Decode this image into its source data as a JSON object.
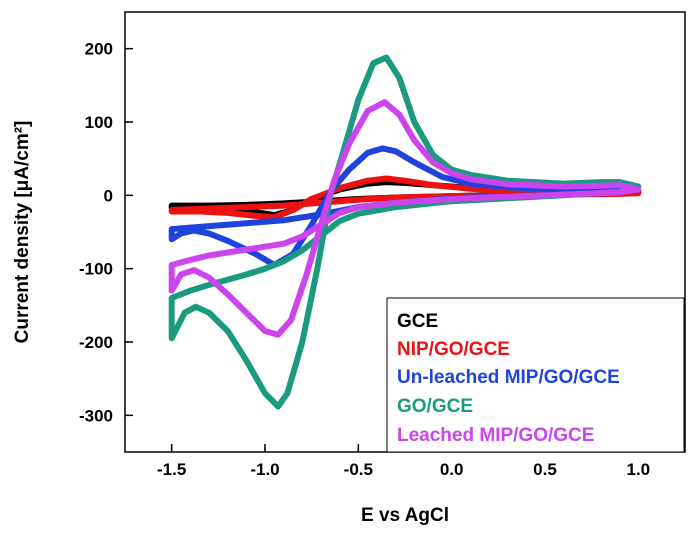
{
  "chart_data": {
    "type": "line",
    "title": "",
    "xlabel": "E vs AgCl",
    "ylabel": "Current density [μA/cm²]",
    "xlim": [
      -1.75,
      1.25
    ],
    "ylim": [
      -350,
      250
    ],
    "xticks": [
      -1.5,
      -1.0,
      -0.5,
      0.0,
      0.5,
      1.0
    ],
    "xtick_labels": [
      "-1.5",
      "-1.0",
      "-0.5",
      "0.0",
      "0.5",
      "1.0"
    ],
    "yticks": [
      -300,
      -200,
      -100,
      0,
      100,
      200
    ],
    "ytick_labels": [
      "-300",
      "-200",
      "-100",
      "0",
      "100",
      "200"
    ],
    "legend_position": "bottom-right",
    "series": [
      {
        "name": "GCE",
        "color": "#000000",
        "points": [
          [
            -1.5,
            -14
          ],
          [
            -1.3,
            -14
          ],
          [
            -1.1,
            -13
          ],
          [
            -0.9,
            -11
          ],
          [
            -0.7,
            -8
          ],
          [
            -0.5,
            -5
          ],
          [
            -0.3,
            -3
          ],
          [
            0.0,
            -1
          ],
          [
            0.3,
            1
          ],
          [
            0.6,
            2
          ],
          [
            0.9,
            4
          ],
          [
            1.0,
            5
          ],
          [
            0.9,
            8
          ],
          [
            0.7,
            8
          ],
          [
            0.5,
            7
          ],
          [
            0.3,
            8
          ],
          [
            0.1,
            10
          ],
          [
            -0.1,
            14
          ],
          [
            -0.25,
            17
          ],
          [
            -0.35,
            18
          ],
          [
            -0.45,
            16
          ],
          [
            -0.6,
            8
          ],
          [
            -0.75,
            -5
          ],
          [
            -0.85,
            -20
          ],
          [
            -0.95,
            -27
          ],
          [
            -1.05,
            -23
          ],
          [
            -1.2,
            -19
          ],
          [
            -1.35,
            -17
          ],
          [
            -1.5,
            -17
          ]
        ]
      },
      {
        "name": "NIP/GO/GCE",
        "color": "#ee1111",
        "points": [
          [
            -1.5,
            -20
          ],
          [
            -1.3,
            -18
          ],
          [
            -1.1,
            -16
          ],
          [
            -0.9,
            -14
          ],
          [
            -0.7,
            -10
          ],
          [
            -0.5,
            -6
          ],
          [
            -0.3,
            -3
          ],
          [
            0.0,
            -1
          ],
          [
            0.3,
            0
          ],
          [
            0.6,
            1
          ],
          [
            0.9,
            2
          ],
          [
            1.0,
            3
          ],
          [
            0.9,
            5
          ],
          [
            0.7,
            5
          ],
          [
            0.5,
            5
          ],
          [
            0.3,
            6
          ],
          [
            0.1,
            9
          ],
          [
            -0.1,
            14
          ],
          [
            -0.25,
            20
          ],
          [
            -0.35,
            23
          ],
          [
            -0.45,
            20
          ],
          [
            -0.6,
            10
          ],
          [
            -0.75,
            -5
          ],
          [
            -0.85,
            -20
          ],
          [
            -0.95,
            -30
          ],
          [
            -1.05,
            -28
          ],
          [
            -1.2,
            -24
          ],
          [
            -1.35,
            -22
          ],
          [
            -1.5,
            -22
          ]
        ]
      },
      {
        "name": "Un-leached MIP/GO/GCE",
        "color": "#1e44dd",
        "points": [
          [
            -1.5,
            -46
          ],
          [
            -1.3,
            -42
          ],
          [
            -1.1,
            -38
          ],
          [
            -0.9,
            -34
          ],
          [
            -0.7,
            -26
          ],
          [
            -0.5,
            -16
          ],
          [
            -0.3,
            -10
          ],
          [
            0.0,
            -4
          ],
          [
            0.3,
            -1
          ],
          [
            0.6,
            1
          ],
          [
            0.9,
            4
          ],
          [
            1.0,
            8
          ],
          [
            0.9,
            12
          ],
          [
            0.7,
            10
          ],
          [
            0.5,
            9
          ],
          [
            0.3,
            11
          ],
          [
            0.1,
            16
          ],
          [
            -0.05,
            25
          ],
          [
            -0.2,
            45
          ],
          [
            -0.3,
            60
          ],
          [
            -0.37,
            64
          ],
          [
            -0.45,
            58
          ],
          [
            -0.55,
            35
          ],
          [
            -0.65,
            5
          ],
          [
            -0.75,
            -40
          ],
          [
            -0.85,
            -80
          ],
          [
            -0.95,
            -95
          ],
          [
            -1.05,
            -80
          ],
          [
            -1.2,
            -62
          ],
          [
            -1.3,
            -52
          ],
          [
            -1.38,
            -48
          ],
          [
            -1.45,
            -52
          ],
          [
            -1.5,
            -60
          ]
        ]
      },
      {
        "name": "GO/GCE",
        "color": "#1a9a7e",
        "points": [
          [
            -1.5,
            -140
          ],
          [
            -1.4,
            -130
          ],
          [
            -1.3,
            -122
          ],
          [
            -1.2,
            -115
          ],
          [
            -1.1,
            -108
          ],
          [
            -1.0,
            -100
          ],
          [
            -0.9,
            -90
          ],
          [
            -0.8,
            -75
          ],
          [
            -0.7,
            -55
          ],
          [
            -0.6,
            -35
          ],
          [
            -0.5,
            -25
          ],
          [
            -0.3,
            -16
          ],
          [
            0.0,
            -8
          ],
          [
            0.3,
            -4
          ],
          [
            0.6,
            0
          ],
          [
            0.9,
            5
          ],
          [
            1.0,
            12
          ],
          [
            0.9,
            18
          ],
          [
            0.8,
            18
          ],
          [
            0.6,
            16
          ],
          [
            0.3,
            20
          ],
          [
            0.1,
            28
          ],
          [
            0.0,
            35
          ],
          [
            -0.1,
            55
          ],
          [
            -0.2,
            100
          ],
          [
            -0.28,
            160
          ],
          [
            -0.35,
            188
          ],
          [
            -0.42,
            180
          ],
          [
            -0.5,
            130
          ],
          [
            -0.58,
            60
          ],
          [
            -0.65,
            0
          ],
          [
            -0.72,
            -100
          ],
          [
            -0.8,
            -200
          ],
          [
            -0.88,
            -270
          ],
          [
            -0.93,
            -288
          ],
          [
            -1.0,
            -270
          ],
          [
            -1.1,
            -225
          ],
          [
            -1.2,
            -185
          ],
          [
            -1.3,
            -160
          ],
          [
            -1.37,
            -152
          ],
          [
            -1.43,
            -160
          ],
          [
            -1.5,
            -195
          ]
        ]
      },
      {
        "name": "Leached MIP/GO/GCE",
        "color": "#cc44ee",
        "points": [
          [
            -1.5,
            -95
          ],
          [
            -1.4,
            -88
          ],
          [
            -1.3,
            -82
          ],
          [
            -1.2,
            -78
          ],
          [
            -1.1,
            -74
          ],
          [
            -1.0,
            -70
          ],
          [
            -0.9,
            -66
          ],
          [
            -0.8,
            -56
          ],
          [
            -0.7,
            -40
          ],
          [
            -0.6,
            -24
          ],
          [
            -0.5,
            -16
          ],
          [
            -0.3,
            -10
          ],
          [
            0.0,
            -5
          ],
          [
            0.3,
            -2
          ],
          [
            0.6,
            1
          ],
          [
            0.9,
            4
          ],
          [
            1.0,
            8
          ],
          [
            0.9,
            14
          ],
          [
            0.8,
            13
          ],
          [
            0.6,
            12
          ],
          [
            0.3,
            15
          ],
          [
            0.1,
            22
          ],
          [
            0.0,
            30
          ],
          [
            -0.1,
            45
          ],
          [
            -0.2,
            75
          ],
          [
            -0.28,
            110
          ],
          [
            -0.36,
            127
          ],
          [
            -0.45,
            115
          ],
          [
            -0.55,
            70
          ],
          [
            -0.63,
            20
          ],
          [
            -0.7,
            -40
          ],
          [
            -0.78,
            -110
          ],
          [
            -0.86,
            -170
          ],
          [
            -0.93,
            -190
          ],
          [
            -1.0,
            -185
          ],
          [
            -1.1,
            -160
          ],
          [
            -1.2,
            -135
          ],
          [
            -1.3,
            -112
          ],
          [
            -1.38,
            -102
          ],
          [
            -1.45,
            -108
          ],
          [
            -1.5,
            -130
          ]
        ]
      }
    ]
  }
}
